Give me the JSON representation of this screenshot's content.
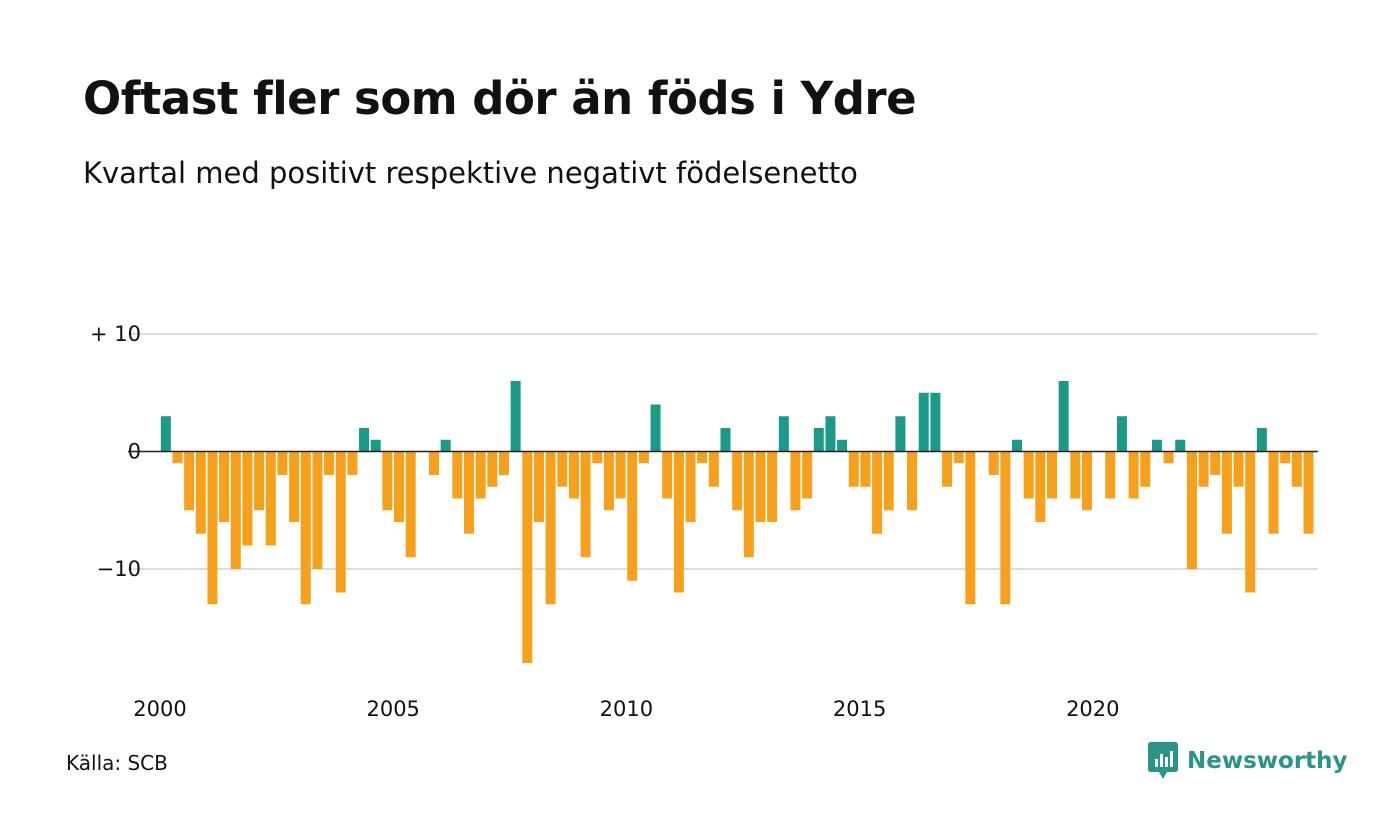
{
  "title": "Oftast fler som dör än föds i Ydre",
  "subtitle": "Kvartal med positivt respektive negativt födelsenetto",
  "source": "Källa: SCB",
  "brand": "Newsworthy",
  "brand_icon": "newsworthy-logo-icon",
  "colors": {
    "positive": "#1b9a8a",
    "negative": "#f6a01b",
    "grid": "#dddddd",
    "zero_line": "#222222",
    "brand": "#2a9487"
  },
  "chart_data": {
    "type": "bar",
    "title": "Oftast fler som dör än föds i Ydre",
    "subtitle": "Kvartal med positivt respektive negativt födelsenetto",
    "xlabel": "",
    "ylabel": "",
    "ylim": [
      -18,
      12
    ],
    "y_ticks": [
      {
        "value": 10,
        "label": "+ 10"
      },
      {
        "value": 0,
        "label": "0"
      },
      {
        "value": -10,
        "label": "−10"
      }
    ],
    "x_ticks": [
      {
        "value": 2000,
        "label": "2000"
      },
      {
        "value": 2005,
        "label": "2005"
      },
      {
        "value": 2010,
        "label": "2010"
      },
      {
        "value": 2015,
        "label": "2015"
      },
      {
        "value": 2020,
        "label": "2020"
      }
    ],
    "grid": true,
    "start_period": "2000 Q1",
    "frequency": "quarterly",
    "values": [
      3,
      -1,
      -5,
      -7,
      -13,
      -6,
      -10,
      -8,
      -5,
      -8,
      -2,
      -6,
      -13,
      -10,
      -2,
      -12,
      -2,
      2,
      1,
      -5,
      -6,
      -9,
      0,
      -2,
      1,
      -4,
      -7,
      -4,
      -3,
      -2,
      6,
      -18,
      -6,
      -13,
      -3,
      -4,
      -9,
      -1,
      -5,
      -4,
      -11,
      -1,
      4,
      -4,
      -12,
      -6,
      -1,
      -3,
      2,
      -5,
      -9,
      -6,
      -6,
      3,
      -5,
      -4,
      2,
      3,
      1,
      -3,
      -3,
      -7,
      -5,
      3,
      -5,
      5,
      5,
      -3,
      -1,
      -13,
      0,
      -2,
      -13,
      1,
      -4,
      -6,
      -4,
      6,
      -4,
      -5,
      0,
      -4,
      3,
      -4,
      -3,
      1,
      -1,
      1,
      -10,
      -3,
      -2,
      -7,
      -3,
      -12,
      2,
      -7,
      -1,
      -3,
      -7
    ]
  }
}
